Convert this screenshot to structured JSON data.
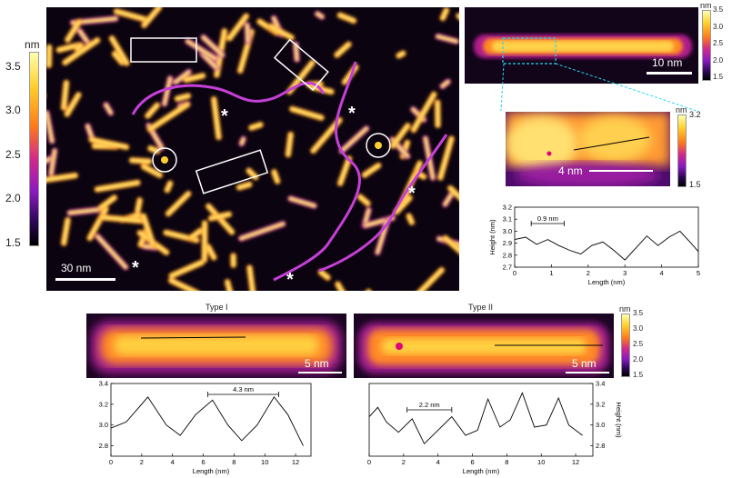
{
  "main_colorbar": {
    "unit": "nm",
    "ticks": [
      "3.5",
      "3.0",
      "2.5",
      "2.0",
      "1.5"
    ],
    "colors": [
      "#ffffb0",
      "#ffcf2a",
      "#ff7a1a",
      "#d12a8a",
      "#8a1ac0",
      "#2a0650",
      "#000000"
    ]
  },
  "main_image": {
    "scale_label": "30 nm",
    "markers": [
      "*",
      "*",
      "*",
      "*",
      "*"
    ]
  },
  "zoom_top": {
    "scale_label": "10 nm"
  },
  "top_colorbar": {
    "unit": "nm",
    "ticks": [
      "3.5",
      "3.0",
      "2.5",
      "2.0",
      "1.5"
    ]
  },
  "zoom_mid": {
    "scale_label": "4 nm"
  },
  "mid_colorbar": {
    "unit": "nm",
    "ticks": [
      "3.2",
      "1.5"
    ]
  },
  "profile_mid": {
    "ylabel": "Height (nm)",
    "xlabel": "Length (nm)",
    "annotation": "0.9 nm",
    "yticks": [
      "3.2",
      "3.1",
      "3.0",
      "2.9",
      "2.8",
      "2.7"
    ],
    "xticks": [
      "0",
      "1",
      "2",
      "3",
      "4",
      "5"
    ]
  },
  "type1": {
    "title": "Type I",
    "scale_label": "5 nm"
  },
  "type2": {
    "title": "Type II",
    "scale_label": "5 nm"
  },
  "bottom_colorbar": {
    "unit": "nm",
    "ticks": [
      "3.5",
      "3.0",
      "2.5",
      "2.0",
      "1.5"
    ]
  },
  "profile_type1": {
    "xlabel": "Length (nm)",
    "annotation": "4.3 nm",
    "yticks": [
      "3.4",
      "3.2",
      "3.0",
      "2.8"
    ],
    "xticks": [
      "0",
      "2",
      "4",
      "6",
      "8",
      "10",
      "12"
    ]
  },
  "profile_type2": {
    "xlabel": "Length (nm)",
    "ylabel": "Height (nm)",
    "annotation": "2.2 nm",
    "yticks": [
      "3.4",
      "3.2",
      "3.0",
      "2.8"
    ],
    "xticks": [
      "0",
      "2",
      "4",
      "6",
      "8",
      "10",
      "12"
    ]
  },
  "chart_data": [
    {
      "type": "line",
      "xlabel": "Length (nm)",
      "ylabel": "Height (nm)",
      "xlim": [
        0,
        5
      ],
      "ylim": [
        2.7,
        3.2
      ],
      "x": [
        0,
        0.3,
        0.6,
        0.9,
        1.2,
        1.5,
        1.8,
        2.1,
        2.4,
        2.7,
        3.0,
        3.3,
        3.6,
        3.9,
        4.2,
        4.5,
        4.8,
        5.0
      ],
      "values": [
        2.93,
        2.95,
        2.89,
        2.93,
        2.88,
        2.84,
        2.81,
        2.88,
        2.91,
        2.84,
        2.76,
        2.86,
        2.96,
        2.88,
        2.95,
        3.0,
        2.9,
        2.83
      ]
    },
    {
      "type": "line",
      "xlabel": "Length (nm)",
      "ylabel": "",
      "xlim": [
        0,
        13
      ],
      "ylim": [
        2.7,
        3.4
      ],
      "x": [
        0,
        1,
        2.4,
        3.6,
        4.5,
        5.5,
        6.6,
        7.6,
        8.5,
        9.5,
        10.6,
        11.5,
        12.5
      ],
      "values": [
        2.97,
        3.03,
        3.27,
        3.0,
        2.9,
        3.1,
        3.24,
        3.0,
        2.85,
        3.0,
        3.27,
        3.1,
        2.8
      ]
    },
    {
      "type": "line",
      "xlabel": "Length (nm)",
      "ylabel": "Height (nm)",
      "xlim": [
        0,
        13
      ],
      "ylim": [
        2.7,
        3.4
      ],
      "x": [
        0,
        0.5,
        1.0,
        1.7,
        2.5,
        3.2,
        4.0,
        4.8,
        5.6,
        6.3,
        6.9,
        7.6,
        8.2,
        8.9,
        9.6,
        10.3,
        11.0,
        11.6,
        12.4
      ],
      "values": [
        3.08,
        3.17,
        3.03,
        2.93,
        3.06,
        2.82,
        2.95,
        3.08,
        2.9,
        2.95,
        3.25,
        2.98,
        3.05,
        3.31,
        2.98,
        3.0,
        3.26,
        3.0,
        2.9
      ]
    }
  ]
}
